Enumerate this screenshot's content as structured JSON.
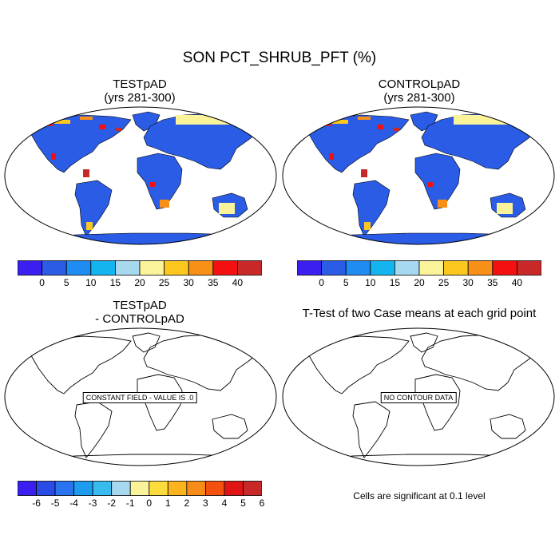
{
  "figure": {
    "title": "SON PCT_SHRUB_PFT (%)",
    "panels": [
      {
        "title_line1": "TESTpAD",
        "title_line2": "(yrs 281-300)"
      },
      {
        "title_line1": "CONTROLpAD",
        "title_line2": "(yrs 281-300)"
      },
      {
        "title_line1": "TESTpAD",
        "title_line2": "- CONTROLpAD"
      },
      {
        "title_line1": "T-Test of two Case means at each grid point",
        "title_line2": ""
      }
    ],
    "diff_message": "CONSTANT FIELD - VALUE IS .0",
    "ttest_message": "NO CONTOUR DATA",
    "significance_note": "Cells are significant at 0.1 level"
  },
  "colorbar_abs": {
    "colors": [
      "#3a1ff0",
      "#2a5ce6",
      "#1e8cf0",
      "#14b4f0",
      "#a6d8ef",
      "#fbf39a",
      "#fcc81e",
      "#f89018",
      "#f41010",
      "#c82828"
    ],
    "labels": [
      "0",
      "5",
      "10",
      "15",
      "20",
      "25",
      "30",
      "35",
      "40"
    ]
  },
  "colorbar_diff": {
    "colors": [
      "#3a1ff0",
      "#2a4ce6",
      "#2a74f0",
      "#1e9cf0",
      "#38bcf0",
      "#a6d8ef",
      "#fbf39a",
      "#fcdc3c",
      "#fcb41e",
      "#f88c18",
      "#f45010",
      "#e01414",
      "#c82828"
    ],
    "labels": [
      "-6",
      "-5",
      "-4",
      "-3",
      "-2",
      "-1",
      "0",
      "1",
      "2",
      "3",
      "4",
      "5",
      "6"
    ]
  },
  "colors": {
    "base_field": "#2a5ce6",
    "high_field": "#e81414",
    "map_background": "#ffffff",
    "coastline": "#000000"
  }
}
